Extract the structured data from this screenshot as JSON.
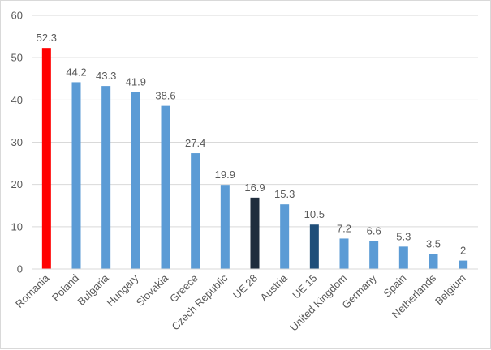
{
  "chart_data": {
    "type": "bar",
    "title": "",
    "xlabel": "",
    "ylabel": "",
    "ylim": [
      0,
      60
    ],
    "yticks": [
      0,
      10,
      20,
      30,
      40,
      50,
      60
    ],
    "grid": true,
    "legend": "none",
    "categories": [
      "Romania",
      "Poland",
      "Bulgaria",
      "Hungary",
      "Slovakia",
      "Greece",
      "Czech Republic",
      "UE 28",
      "Austria",
      "UE 15",
      "United Kingdom",
      "Germany",
      "Spain",
      "Netherlands",
      "Belgium"
    ],
    "values": [
      52.3,
      44.2,
      43.3,
      41.9,
      38.6,
      27.4,
      19.9,
      16.9,
      15.3,
      10.5,
      7.2,
      6.6,
      5.3,
      3.5,
      2
    ],
    "value_labels": [
      "52.3",
      "44.2",
      "43.3",
      "41.9",
      "38.6",
      "27.4",
      "19.9",
      "16.9",
      "15.3",
      "10.5",
      "7.2",
      "6.6",
      "5.3",
      "3.5",
      "2"
    ],
    "bar_colors": [
      "#ff0000",
      "#5b9bd5",
      "#5b9bd5",
      "#5b9bd5",
      "#5b9bd5",
      "#5b9bd5",
      "#5b9bd5",
      "#1f2d3d",
      "#5b9bd5",
      "#1f4e79",
      "#5b9bd5",
      "#5b9bd5",
      "#5b9bd5",
      "#5b9bd5",
      "#5b9bd5"
    ]
  },
  "colors": {
    "default_bar": "#5b9bd5",
    "highlight_bar": "#ff0000",
    "gridline": "#d9d9d9",
    "text": "#595959"
  }
}
